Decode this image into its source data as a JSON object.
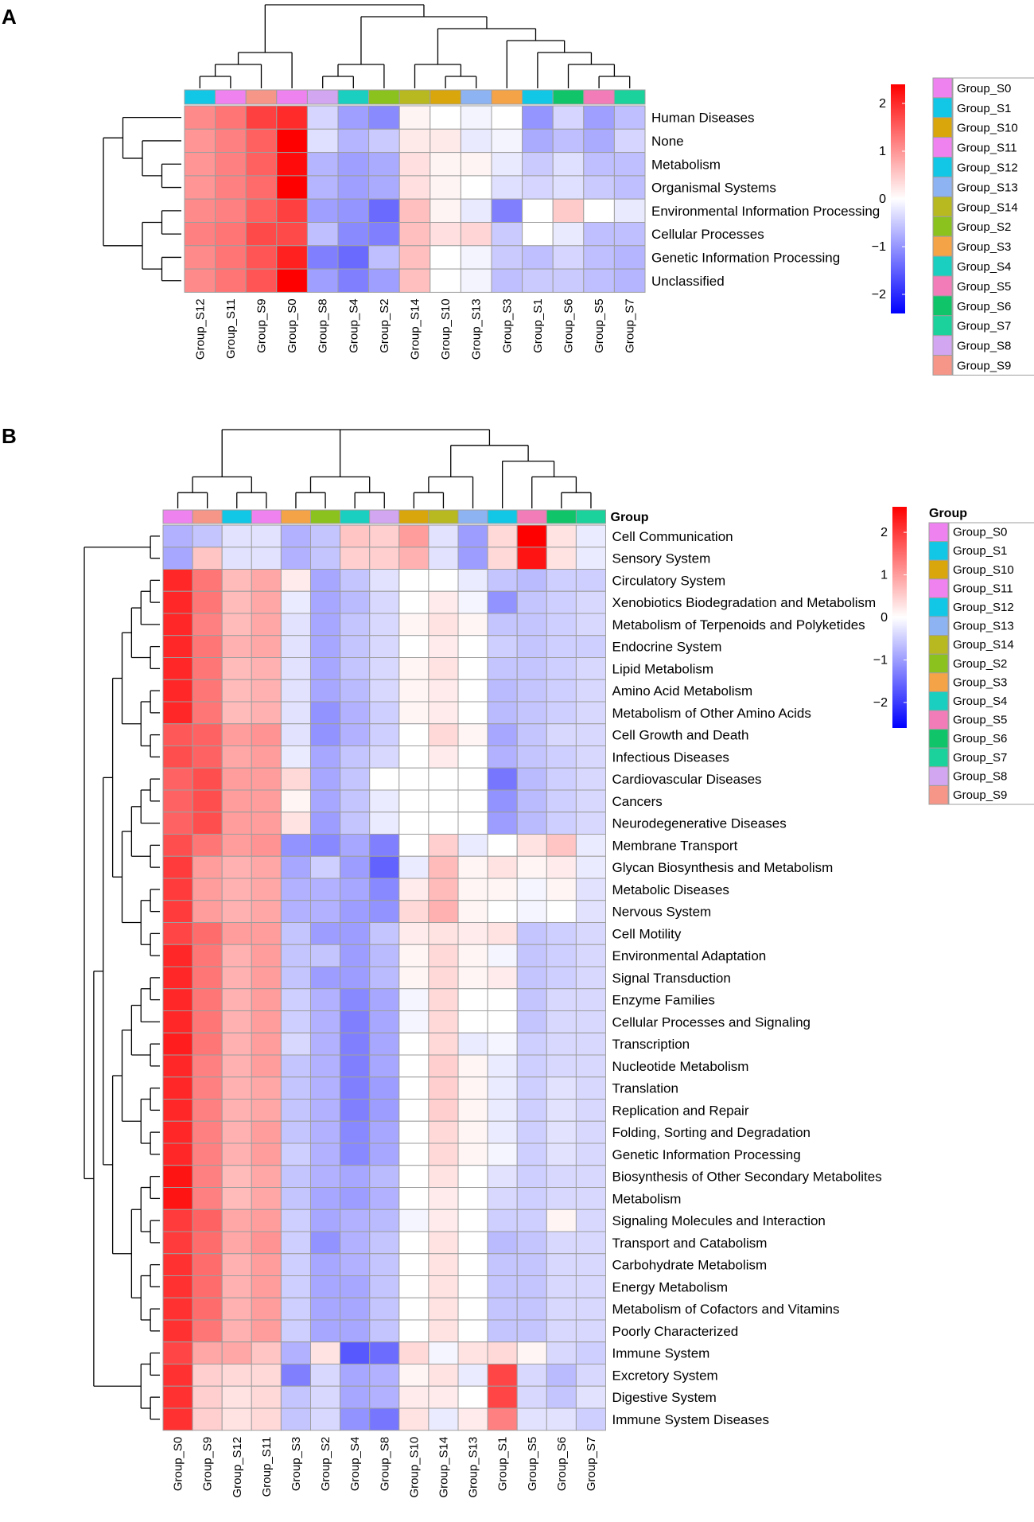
{
  "colors": {
    "Group_S0": "#EE82EE",
    "Group_S1": "#12C7E6",
    "Group_S10": "#D9A70C",
    "Group_S11": "#F082F0",
    "Group_S12": "#12C7E6",
    "Group_S13": "#8DB3F2",
    "Group_S14": "#B8B820",
    "Group_S2": "#8CC21D",
    "Group_S3": "#F5A347",
    "Group_S4": "#1ACFC0",
    "Group_S5": "#F27CB8",
    "Group_S6": "#10C46A",
    "Group_S7": "#1BD19C",
    "Group_S8": "#D2A6F0",
    "Group_S9": "#F59688"
  },
  "legend_groups": [
    "Group_S0",
    "Group_S1",
    "Group_S10",
    "Group_S11",
    "Group_S12",
    "Group_S13",
    "Group_S14",
    "Group_S2",
    "Group_S3",
    "Group_S4",
    "Group_S5",
    "Group_S6",
    "Group_S7",
    "Group_S8",
    "Group_S9"
  ],
  "chart_data": [
    {
      "panel": "A",
      "type": "heatmap",
      "annotation_title": "",
      "colorbar": {
        "min": -2.4,
        "max": 2.4,
        "ticks": [
          2,
          1,
          0,
          -1,
          -2
        ],
        "low": "#0000FF",
        "mid": "#FFFFFF",
        "high": "#FF0000"
      },
      "columns": [
        "Group_S12",
        "Group_S11",
        "Group_S9",
        "Group_S0",
        "Group_S8",
        "Group_S4",
        "Group_S2",
        "Group_S14",
        "Group_S10",
        "Group_S13",
        "Group_S3",
        "Group_S1",
        "Group_S6",
        "Group_S5",
        "Group_S7"
      ],
      "rows": [
        "Human Diseases",
        "None",
        "Metabolism",
        "Organismal Systems",
        "Environmental Information Processing",
        "Cellular Processes",
        "Genetic Information Processing",
        "Unclassified"
      ],
      "values": [
        [
          1.1,
          1.3,
          1.8,
          2.0,
          -0.4,
          -0.9,
          -1.1,
          0.1,
          0.0,
          -0.1,
          0.0,
          -1.0,
          -0.4,
          -0.9,
          -0.6
        ],
        [
          1.0,
          1.2,
          1.5,
          2.4,
          -0.3,
          -0.7,
          -0.5,
          0.2,
          0.2,
          -0.2,
          -0.1,
          -0.8,
          -0.6,
          -0.8,
          -0.4
        ],
        [
          1.0,
          1.2,
          1.5,
          2.3,
          -0.7,
          -0.9,
          -0.8,
          0.3,
          0.1,
          0.1,
          -0.2,
          -0.5,
          -0.3,
          -0.6,
          -0.6
        ],
        [
          1.0,
          1.2,
          1.4,
          2.4,
          -0.7,
          -0.9,
          -0.8,
          0.3,
          0.1,
          0.0,
          -0.3,
          -0.4,
          -0.3,
          -0.5,
          -0.6
        ],
        [
          1.1,
          1.2,
          1.5,
          1.8,
          -0.9,
          -1.0,
          -1.4,
          0.6,
          0.1,
          -0.2,
          -1.2,
          0.0,
          0.5,
          0.0,
          -0.2
        ],
        [
          1.2,
          1.3,
          1.7,
          1.7,
          -0.6,
          -1.1,
          -1.2,
          0.6,
          0.3,
          0.4,
          -0.5,
          0.0,
          -0.2,
          -0.6,
          -0.6
        ],
        [
          1.1,
          1.3,
          1.6,
          2.1,
          -1.2,
          -1.4,
          -0.6,
          0.6,
          0.0,
          -0.1,
          -0.5,
          -0.6,
          -0.4,
          -0.6,
          -0.7
        ],
        [
          1.1,
          1.3,
          1.6,
          2.4,
          -0.9,
          -1.2,
          -0.9,
          0.6,
          0.0,
          -0.1,
          -0.6,
          -0.5,
          -0.5,
          -0.6,
          -0.7
        ]
      ],
      "column_tree": [
        [
          [
            [
              [
                [
                  [
                    [
                      "Group_S12",
                      "Group_S11"
                    ],
                    "Group_S9"
                  ],
                  "Group_S0"
                ]
              ]
            ]
          ],
          [
            [
              [
                "Group_S8",
                "Group_S4"
              ],
              "Group_S2"
            ],
            [
              [
                "Group_S14",
                [
                  "Group_S10",
                  "Group_S13"
                ]
              ],
              [
                "Group_S3",
                [
                  "Group_S1",
                  [
                    "Group_S6",
                    [
                      "Group_S5",
                      "Group_S7"
                    ]
                  ]
                ]
              ]
            ]
          ]
        ]
      ],
      "row_tree": [
        [
          "Human Diseases",
          [
            "None",
            [
              "Metabolism",
              "Organismal Systems"
            ]
          ]
        ],
        [
          [
            "Environmental Information Processing",
            "Cellular Processes"
          ],
          [
            "Genetic Information Processing",
            "Unclassified"
          ]
        ]
      ]
    },
    {
      "panel": "B",
      "type": "heatmap",
      "annotation_title": "Group",
      "colorbar": {
        "min": -2.6,
        "max": 2.6,
        "ticks": [
          2,
          1,
          0,
          -1,
          -2
        ],
        "low": "#0000FF",
        "mid": "#FFFFFF",
        "high": "#FF0000"
      },
      "columns": [
        "Group_S0",
        "Group_S9",
        "Group_S12",
        "Group_S11",
        "Group_S3",
        "Group_S2",
        "Group_S4",
        "Group_S8",
        "Group_S10",
        "Group_S14",
        "Group_S13",
        "Group_S1",
        "Group_S5",
        "Group_S6",
        "Group_S7"
      ],
      "rows": [
        "Cell Communication",
        "Sensory System",
        "Circulatory System",
        "Xenobiotics Biodegradation and Metabolism",
        "Metabolism of Terpenoids and Polyketides",
        "Endocrine System",
        "Lipid Metabolism",
        "Amino Acid Metabolism",
        "Metabolism of Other Amino Acids",
        "Cell Growth and Death",
        "Infectious Diseases",
        "Cardiovascular Diseases",
        "Cancers",
        "Neurodegenerative Diseases",
        "Membrane Transport",
        "Glycan Biosynthesis and Metabolism",
        "Metabolic Diseases",
        "Nervous System",
        "Cell Motility",
        "Environmental Adaptation",
        "Signal Transduction",
        "Enzyme Families",
        "Cellular Processes and Signaling",
        "Transcription",
        "Nucleotide Metabolism",
        "Translation",
        "Replication and Repair",
        "Folding, Sorting and Degradation",
        "Genetic Information Processing",
        "Biosynthesis of Other Secondary Metabolites",
        "Metabolism",
        "Signaling Molecules and Interaction",
        "Transport and Catabolism",
        "Carbohydrate Metabolism",
        "Energy Metabolism",
        "Metabolism of Cofactors and Vitamins",
        "Poorly Characterized",
        "Immune System",
        "Excretory System",
        "Digestive System",
        "Immune System Diseases"
      ],
      "values": [
        [
          -0.8,
          -0.6,
          -0.3,
          -0.3,
          -0.8,
          -0.6,
          0.6,
          0.5,
          1.0,
          -0.3,
          -1.0,
          0.4,
          2.6,
          0.3,
          -0.2
        ],
        [
          -0.9,
          0.6,
          -0.3,
          -0.3,
          -0.8,
          -0.6,
          0.5,
          0.5,
          0.8,
          -0.3,
          -1.0,
          0.4,
          2.4,
          0.3,
          -0.2
        ],
        [
          2.2,
          1.4,
          0.7,
          0.9,
          0.2,
          -0.9,
          -0.6,
          -0.3,
          0.0,
          0.0,
          -0.2,
          -0.6,
          -0.7,
          -0.5,
          -0.5
        ],
        [
          2.2,
          1.4,
          0.7,
          0.9,
          -0.2,
          -0.9,
          -0.7,
          -0.4,
          0.0,
          0.2,
          -0.1,
          -1.1,
          -0.6,
          -0.5,
          -0.4
        ],
        [
          2.2,
          1.3,
          0.7,
          0.9,
          -0.3,
          -0.9,
          -0.6,
          -0.4,
          0.1,
          0.3,
          0.1,
          -0.6,
          -0.6,
          -0.5,
          -0.4
        ],
        [
          2.2,
          1.4,
          0.8,
          0.9,
          -0.3,
          -0.9,
          -0.6,
          -0.4,
          0.0,
          0.2,
          0.0,
          -0.5,
          -0.6,
          -0.5,
          -0.5
        ],
        [
          2.2,
          1.4,
          0.7,
          0.8,
          -0.3,
          -0.9,
          -0.6,
          -0.4,
          0.1,
          0.3,
          0.0,
          -0.6,
          -0.6,
          -0.5,
          -0.4
        ],
        [
          2.2,
          1.4,
          0.7,
          0.8,
          -0.3,
          -0.9,
          -0.7,
          -0.4,
          0.1,
          0.2,
          0.0,
          -0.7,
          -0.6,
          -0.5,
          -0.4
        ],
        [
          2.2,
          1.4,
          0.7,
          0.8,
          -0.3,
          -1.1,
          -0.8,
          -0.5,
          0.1,
          0.2,
          0.0,
          -0.7,
          -0.6,
          -0.5,
          -0.4
        ],
        [
          1.7,
          1.6,
          1.0,
          1.1,
          -0.3,
          -1.1,
          -0.8,
          -0.5,
          0.0,
          0.4,
          0.1,
          -0.9,
          -0.6,
          -0.4,
          -0.4
        ],
        [
          1.8,
          1.6,
          0.9,
          1.0,
          -0.2,
          -0.9,
          -0.6,
          -0.4,
          0.0,
          0.2,
          0.0,
          -0.8,
          -0.6,
          -0.5,
          -0.4
        ],
        [
          1.6,
          1.8,
          1.0,
          1.0,
          0.4,
          -0.9,
          -0.6,
          0.0,
          0.0,
          0.0,
          0.0,
          -1.4,
          -0.7,
          -0.5,
          -0.4
        ],
        [
          1.6,
          1.8,
          1.0,
          1.0,
          0.1,
          -0.9,
          -0.6,
          -0.2,
          0.0,
          0.0,
          0.0,
          -1.1,
          -0.7,
          -0.5,
          -0.4
        ],
        [
          1.6,
          1.8,
          1.0,
          1.0,
          0.3,
          -1.0,
          -0.6,
          -0.2,
          0.0,
          0.0,
          0.0,
          -1.0,
          -0.7,
          -0.5,
          -0.4
        ],
        [
          1.8,
          1.4,
          1.0,
          1.1,
          -1.1,
          -1.2,
          -0.9,
          -1.3,
          0.0,
          0.5,
          -0.2,
          0.0,
          0.3,
          0.6,
          -0.2
        ],
        [
          2.0,
          1.0,
          0.8,
          0.9,
          -0.9,
          -0.5,
          -1.0,
          -1.6,
          -0.2,
          0.7,
          0.1,
          0.3,
          0.1,
          0.2,
          -0.2
        ],
        [
          2.0,
          1.0,
          0.8,
          0.9,
          -0.8,
          -0.8,
          -0.9,
          -1.2,
          0.2,
          0.7,
          0.1,
          0.1,
          -0.1,
          0.1,
          -0.3
        ],
        [
          2.0,
          1.0,
          0.8,
          0.9,
          -0.8,
          -0.8,
          -1.0,
          -1.1,
          0.4,
          0.8,
          0.1,
          0.0,
          -0.1,
          0.0,
          -0.3
        ],
        [
          1.9,
          1.5,
          1.0,
          1.0,
          -0.6,
          -1.0,
          -1.0,
          -0.6,
          0.2,
          0.3,
          0.2,
          0.3,
          -0.6,
          -0.5,
          -0.4
        ],
        [
          2.2,
          1.4,
          0.8,
          1.0,
          -0.6,
          -0.6,
          -1.0,
          -0.7,
          0.1,
          0.4,
          0.1,
          -0.1,
          -0.6,
          -0.5,
          -0.4
        ],
        [
          2.2,
          1.4,
          0.8,
          1.0,
          -0.6,
          -1.0,
          -1.0,
          -0.7,
          0.1,
          0.4,
          0.1,
          0.2,
          -0.6,
          -0.5,
          -0.4
        ],
        [
          2.2,
          1.4,
          0.8,
          1.0,
          -0.5,
          -0.8,
          -1.2,
          -0.9,
          -0.1,
          0.4,
          0.0,
          0.0,
          -0.6,
          -0.4,
          -0.4
        ],
        [
          2.2,
          1.4,
          0.8,
          1.0,
          -0.5,
          -0.8,
          -1.3,
          -0.9,
          -0.1,
          0.4,
          0.0,
          0.0,
          -0.6,
          -0.4,
          -0.4
        ],
        [
          2.3,
          1.4,
          0.8,
          1.0,
          -0.4,
          -0.8,
          -1.3,
          -0.9,
          0.0,
          0.4,
          -0.2,
          -0.1,
          -0.5,
          -0.4,
          -0.4
        ],
        [
          2.2,
          1.3,
          0.8,
          1.0,
          -0.6,
          -0.8,
          -1.3,
          -0.9,
          0.0,
          0.5,
          0.1,
          -0.2,
          -0.5,
          -0.4,
          -0.4
        ],
        [
          2.2,
          1.3,
          0.8,
          0.9,
          -0.6,
          -0.8,
          -1.3,
          -1.0,
          0.0,
          0.5,
          0.1,
          -0.2,
          -0.5,
          -0.3,
          -0.4
        ],
        [
          2.2,
          1.3,
          0.8,
          0.9,
          -0.6,
          -0.8,
          -1.3,
          -1.0,
          0.0,
          0.5,
          0.1,
          -0.2,
          -0.5,
          -0.3,
          -0.4
        ],
        [
          2.2,
          1.3,
          0.8,
          1.0,
          -0.6,
          -0.8,
          -1.2,
          -0.9,
          0.0,
          0.4,
          0.1,
          -0.2,
          -0.5,
          -0.3,
          -0.4
        ],
        [
          2.2,
          1.3,
          0.8,
          1.0,
          -0.5,
          -0.8,
          -1.2,
          -0.9,
          0.0,
          0.4,
          0.1,
          -0.1,
          -0.5,
          -0.3,
          -0.4
        ],
        [
          2.4,
          1.3,
          0.7,
          0.9,
          -0.6,
          -0.8,
          -0.9,
          -0.7,
          0.0,
          0.3,
          0.0,
          -0.3,
          -0.5,
          -0.4,
          -0.4
        ],
        [
          2.4,
          1.3,
          0.7,
          0.9,
          -0.6,
          -0.9,
          -1.0,
          -0.8,
          0.0,
          0.2,
          0.0,
          -0.4,
          -0.5,
          -0.4,
          -0.4
        ],
        [
          2.0,
          1.6,
          0.9,
          1.0,
          -0.5,
          -0.9,
          -0.8,
          -0.7,
          -0.1,
          0.2,
          0.0,
          -0.5,
          -0.5,
          0.1,
          -0.4
        ],
        [
          2.0,
          1.5,
          0.9,
          1.1,
          -0.5,
          -1.1,
          -0.8,
          -0.6,
          0.0,
          0.3,
          0.0,
          -0.7,
          -0.6,
          -0.4,
          -0.4
        ],
        [
          2.1,
          1.5,
          0.8,
          1.0,
          -0.5,
          -0.9,
          -0.8,
          -0.6,
          0.0,
          0.3,
          0.0,
          -0.6,
          -0.6,
          -0.4,
          -0.4
        ],
        [
          2.1,
          1.5,
          0.8,
          1.0,
          -0.5,
          -0.9,
          -0.9,
          -0.6,
          0.0,
          0.3,
          0.0,
          -0.6,
          -0.6,
          -0.4,
          -0.4
        ],
        [
          2.1,
          1.5,
          0.8,
          1.0,
          -0.5,
          -0.9,
          -0.9,
          -0.6,
          0.0,
          0.3,
          0.0,
          -0.6,
          -0.6,
          -0.4,
          -0.4
        ],
        [
          2.1,
          1.4,
          0.8,
          1.0,
          -0.5,
          -0.9,
          -0.9,
          -0.6,
          0.0,
          0.3,
          0.0,
          -0.6,
          -0.6,
          -0.4,
          -0.4
        ],
        [
          1.9,
          0.9,
          0.9,
          0.6,
          -0.8,
          0.3,
          -1.7,
          -1.5,
          0.4,
          -0.1,
          0.3,
          0.4,
          0.1,
          -0.4,
          -0.5
        ],
        [
          2.1,
          0.5,
          0.4,
          0.4,
          -1.3,
          -0.4,
          -0.9,
          -0.8,
          0.1,
          0.3,
          -0.2,
          1.9,
          -0.4,
          -0.7,
          -0.4
        ],
        [
          2.1,
          0.5,
          0.3,
          0.4,
          -0.6,
          -0.4,
          -0.9,
          -0.8,
          0.2,
          0.2,
          0.0,
          1.9,
          -0.4,
          -0.6,
          -0.3
        ],
        [
          2.1,
          0.5,
          0.3,
          0.4,
          -0.6,
          -0.4,
          -1.1,
          -1.4,
          0.3,
          -0.2,
          0.2,
          1.3,
          -0.3,
          -0.3,
          -0.5
        ]
      ]
    }
  ]
}
